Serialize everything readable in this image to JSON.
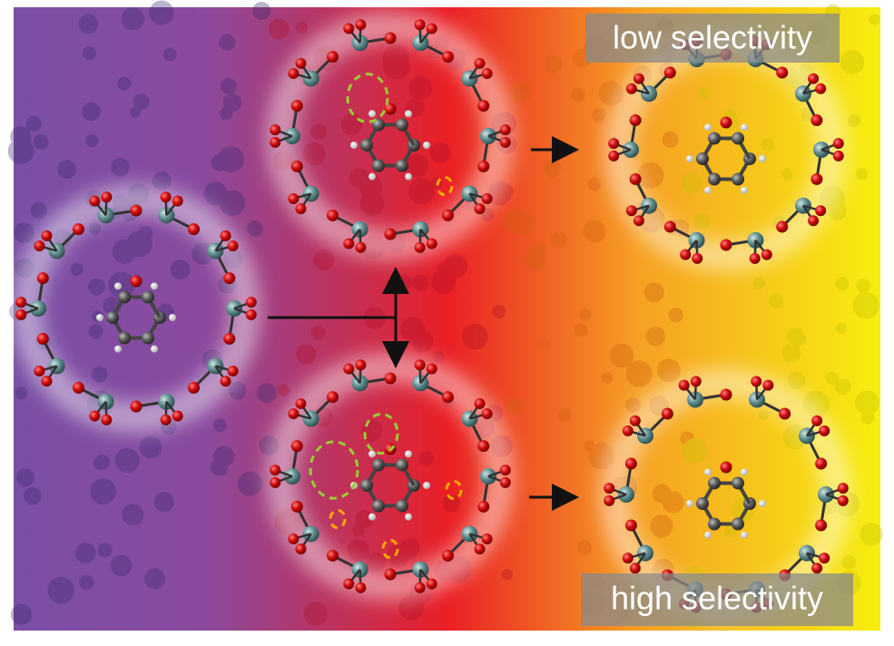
{
  "labels": {
    "low": "low selectivity",
    "high": "high selectivity"
  }
}
